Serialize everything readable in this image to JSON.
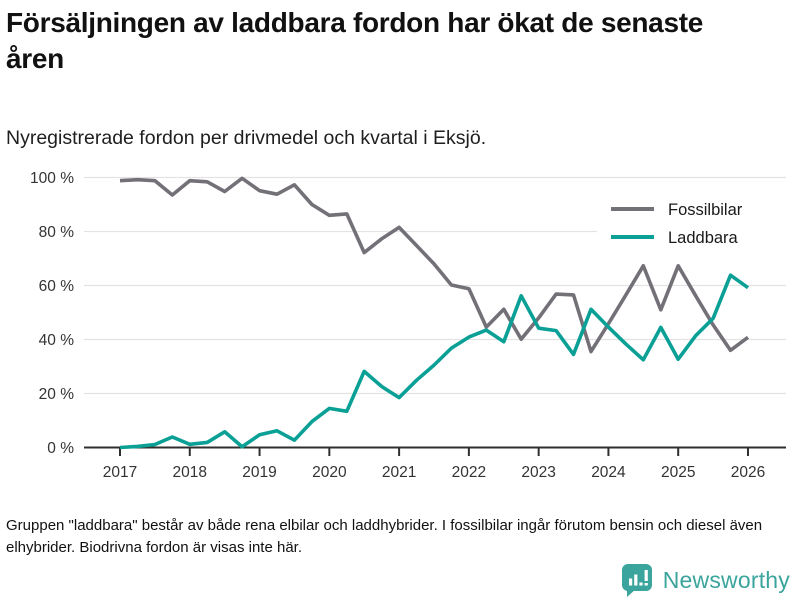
{
  "header": {
    "title": "Försäljningen av laddbara fordon har ökat de senaste åren",
    "subtitle": "Nyregistrerade fordon per drivmedel och kvartal i Eksjö."
  },
  "chart_data": {
    "type": "line",
    "title": "Nyregistrerade fordon per drivmedel och kvartal i Eksjö.",
    "x_unit": "quarter",
    "x_start": {
      "year": 2017,
      "quarter": 1
    },
    "x_end": {
      "year": 2026,
      "quarter": 1
    },
    "x_tick_labels": [
      "2017",
      "2018",
      "2019",
      "2020",
      "2021",
      "2022",
      "2023",
      "2024",
      "2025",
      "2026"
    ],
    "y_ticks": [
      0,
      20,
      40,
      60,
      80,
      100
    ],
    "y_tick_labels": [
      "0 %",
      "20 %",
      "40 %",
      "60 %",
      "80 %",
      "100 %"
    ],
    "ylim": [
      0,
      100
    ],
    "unit": "%",
    "grid": true,
    "legend_position": "top-right",
    "series": [
      {
        "name": "Fossilbilar",
        "color": "#747078",
        "values": [
          98.8,
          99.2,
          98.8,
          93.5,
          98.8,
          98.4,
          94.8,
          99.7,
          95.1,
          93.8,
          97.3,
          90.0,
          86.0,
          86.5,
          72.2,
          77.3,
          81.5,
          74.8,
          68.0,
          60.2,
          58.8,
          44.6,
          51.2,
          40.1,
          48.0,
          56.8,
          56.5,
          35.5,
          45.8,
          56.5,
          67.3,
          51.0,
          67.3,
          56.2,
          45.4,
          36.0,
          40.8
        ]
      },
      {
        "name": "Laddbara",
        "color": "#0aa096",
        "values": [
          0.0,
          0.4,
          1.1,
          3.9,
          1.2,
          1.9,
          5.8,
          0.3,
          4.7,
          6.2,
          2.7,
          9.6,
          14.5,
          13.4,
          28.2,
          22.6,
          18.5,
          24.9,
          30.5,
          36.8,
          40.9,
          43.5,
          39.2,
          56.2,
          44.2,
          43.3,
          34.5,
          51.2,
          44.6,
          38.3,
          32.5,
          44.5,
          32.7,
          41.4,
          47.8,
          63.8,
          59.2
        ]
      }
    ]
  },
  "footer": {
    "note": "Gruppen \"laddbara\" består av både rena elbilar och laddhybrider. I fossilbilar ingår förutom bensin och diesel även elhybrider. Biodrivna fordon är visas inte här.",
    "logo_text": "Newsworthy"
  },
  "colors": {
    "fossil_line": "#747078",
    "chargeable_line": "#0aa096",
    "gridline": "#e3e3e3",
    "axis": "#2f2f2f",
    "tick_label": "#333333",
    "logo_teal": "#3ba49c"
  }
}
